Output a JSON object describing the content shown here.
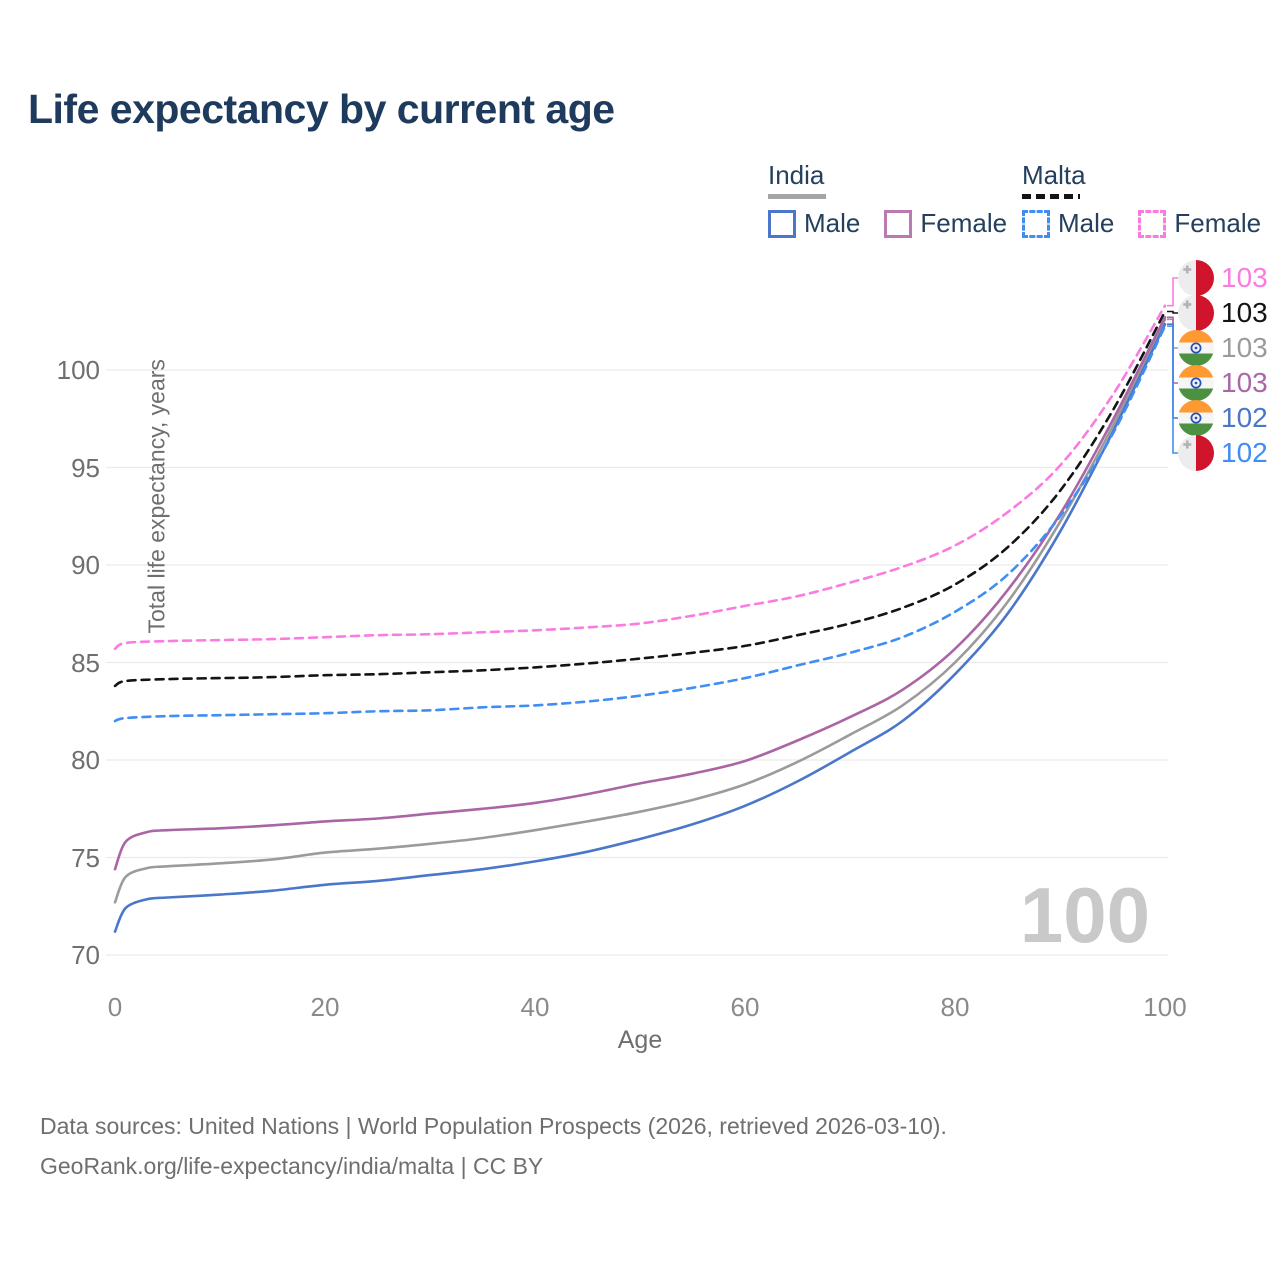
{
  "title": "Life expectancy by current age",
  "legend": {
    "groups": [
      {
        "label": "India",
        "line_style": "solid",
        "items": [
          {
            "label": "Male",
            "color": "#4a77c9"
          },
          {
            "label": "Female",
            "color": "#bb79b4"
          }
        ]
      },
      {
        "label": "Malta",
        "line_style": "dashed",
        "items": [
          {
            "label": "Male",
            "color": "#3f8df5"
          },
          {
            "label": "Female",
            "color": "#fb7ce1"
          }
        ]
      }
    ]
  },
  "axes": {
    "y_title": "Total life expectancy, years",
    "x_title": "Age"
  },
  "watermark_age": "100",
  "endpoint_labels": [
    {
      "flag": "malta",
      "value": "103",
      "color": "#fb7ce1",
      "series": "Malta Female"
    },
    {
      "flag": "malta",
      "value": "103",
      "color": "#141414",
      "series": "Malta Total"
    },
    {
      "flag": "india",
      "value": "103",
      "color": "#9b9b9b",
      "series": "India Total"
    },
    {
      "flag": "india",
      "value": "103",
      "color": "#aa67a6",
      "series": "India Female"
    },
    {
      "flag": "india",
      "value": "102",
      "color": "#4a77c9",
      "series": "India Male"
    },
    {
      "flag": "malta",
      "value": "102",
      "color": "#3f8df5",
      "series": "Malta Male"
    }
  ],
  "footer": {
    "line1": "Data sources: United Nations | World Population Prospects (2026, retrieved 2026-03-10).",
    "line2": "GeoRank.org/life-expectancy/india/malta | CC BY"
  },
  "chart_data": {
    "type": "line",
    "title": "Life expectancy by current age",
    "xlabel": "Age",
    "ylabel": "Total life expectancy, years",
    "xlim": [
      0,
      100
    ],
    "ylim": [
      69,
      104
    ],
    "xticks": [
      0,
      20,
      40,
      60,
      80,
      100
    ],
    "yticks": [
      70,
      75,
      80,
      85,
      90,
      95,
      100
    ],
    "grid": "horizontal",
    "legend_position": "top-right",
    "series": [
      {
        "name": "Malta Female",
        "color": "#fb7ce1",
        "dashed": true,
        "end_label": "103",
        "points": [
          [
            0,
            85.7
          ],
          [
            1,
            86.0
          ],
          [
            5,
            86.1
          ],
          [
            10,
            86.15
          ],
          [
            15,
            86.2
          ],
          [
            20,
            86.3
          ],
          [
            25,
            86.4
          ],
          [
            30,
            86.45
          ],
          [
            35,
            86.55
          ],
          [
            40,
            86.65
          ],
          [
            45,
            86.8
          ],
          [
            50,
            87.0
          ],
          [
            55,
            87.4
          ],
          [
            60,
            87.9
          ],
          [
            65,
            88.4
          ],
          [
            70,
            89.1
          ],
          [
            75,
            89.9
          ],
          [
            80,
            91.0
          ],
          [
            85,
            92.7
          ],
          [
            90,
            95.1
          ],
          [
            95,
            98.7
          ],
          [
            100,
            103.3
          ]
        ]
      },
      {
        "name": "Malta Total",
        "color": "#141414",
        "dashed": true,
        "end_label": "103",
        "points": [
          [
            0,
            83.8
          ],
          [
            1,
            84.05
          ],
          [
            5,
            84.15
          ],
          [
            10,
            84.2
          ],
          [
            15,
            84.25
          ],
          [
            20,
            84.35
          ],
          [
            25,
            84.4
          ],
          [
            30,
            84.5
          ],
          [
            35,
            84.6
          ],
          [
            40,
            84.75
          ],
          [
            45,
            84.95
          ],
          [
            50,
            85.2
          ],
          [
            55,
            85.5
          ],
          [
            60,
            85.85
          ],
          [
            65,
            86.4
          ],
          [
            70,
            87.0
          ],
          [
            75,
            87.8
          ],
          [
            80,
            89.0
          ],
          [
            85,
            90.9
          ],
          [
            90,
            93.8
          ],
          [
            95,
            97.9
          ],
          [
            100,
            103.0
          ]
        ]
      },
      {
        "name": "India Total",
        "color": "#9b9b9b",
        "dashed": false,
        "end_label": "103",
        "points": [
          [
            0,
            72.7
          ],
          [
            1,
            74.0
          ],
          [
            3,
            74.45
          ],
          [
            5,
            74.55
          ],
          [
            10,
            74.7
          ],
          [
            15,
            74.9
          ],
          [
            20,
            75.25
          ],
          [
            25,
            75.45
          ],
          [
            30,
            75.7
          ],
          [
            35,
            76.0
          ],
          [
            40,
            76.4
          ],
          [
            45,
            76.85
          ],
          [
            50,
            77.35
          ],
          [
            55,
            77.95
          ],
          [
            60,
            78.75
          ],
          [
            65,
            79.9
          ],
          [
            70,
            81.3
          ],
          [
            75,
            82.8
          ],
          [
            80,
            85.0
          ],
          [
            85,
            88.1
          ],
          [
            90,
            92.2
          ],
          [
            95,
            97.1
          ],
          [
            100,
            102.6
          ]
        ]
      },
      {
        "name": "India Female",
        "color": "#a965a5",
        "dashed": false,
        "end_label": "103",
        "points": [
          [
            0,
            74.4
          ],
          [
            1,
            75.8
          ],
          [
            3,
            76.3
          ],
          [
            5,
            76.4
          ],
          [
            10,
            76.5
          ],
          [
            15,
            76.65
          ],
          [
            20,
            76.85
          ],
          [
            25,
            77.0
          ],
          [
            30,
            77.25
          ],
          [
            35,
            77.5
          ],
          [
            40,
            77.8
          ],
          [
            45,
            78.25
          ],
          [
            50,
            78.8
          ],
          [
            55,
            79.3
          ],
          [
            60,
            79.95
          ],
          [
            65,
            81.0
          ],
          [
            70,
            82.2
          ],
          [
            75,
            83.6
          ],
          [
            80,
            85.7
          ],
          [
            85,
            88.7
          ],
          [
            90,
            92.6
          ],
          [
            95,
            97.4
          ],
          [
            100,
            102.7
          ]
        ]
      },
      {
        "name": "India Male",
        "color": "#4a77c9",
        "dashed": false,
        "end_label": "102",
        "points": [
          [
            0,
            71.2
          ],
          [
            1,
            72.4
          ],
          [
            3,
            72.85
          ],
          [
            5,
            72.95
          ],
          [
            10,
            73.1
          ],
          [
            15,
            73.3
          ],
          [
            20,
            73.6
          ],
          [
            25,
            73.8
          ],
          [
            30,
            74.1
          ],
          [
            35,
            74.4
          ],
          [
            40,
            74.8
          ],
          [
            45,
            75.3
          ],
          [
            50,
            75.95
          ],
          [
            55,
            76.7
          ],
          [
            60,
            77.65
          ],
          [
            65,
            78.9
          ],
          [
            70,
            80.4
          ],
          [
            75,
            82.0
          ],
          [
            80,
            84.4
          ],
          [
            85,
            87.5
          ],
          [
            90,
            91.7
          ],
          [
            95,
            96.8
          ],
          [
            100,
            102.35
          ]
        ]
      },
      {
        "name": "Malta Male",
        "color": "#3f8df5",
        "dashed": true,
        "end_label": "102",
        "points": [
          [
            0,
            82.0
          ],
          [
            1,
            82.15
          ],
          [
            5,
            82.25
          ],
          [
            10,
            82.3
          ],
          [
            15,
            82.35
          ],
          [
            20,
            82.4
          ],
          [
            25,
            82.5
          ],
          [
            30,
            82.55
          ],
          [
            35,
            82.7
          ],
          [
            40,
            82.8
          ],
          [
            45,
            83.0
          ],
          [
            50,
            83.3
          ],
          [
            55,
            83.7
          ],
          [
            60,
            84.2
          ],
          [
            65,
            84.85
          ],
          [
            70,
            85.5
          ],
          [
            75,
            86.3
          ],
          [
            80,
            87.6
          ],
          [
            85,
            89.5
          ],
          [
            90,
            92.5
          ],
          [
            95,
            96.7
          ],
          [
            100,
            102.25
          ]
        ]
      }
    ]
  }
}
